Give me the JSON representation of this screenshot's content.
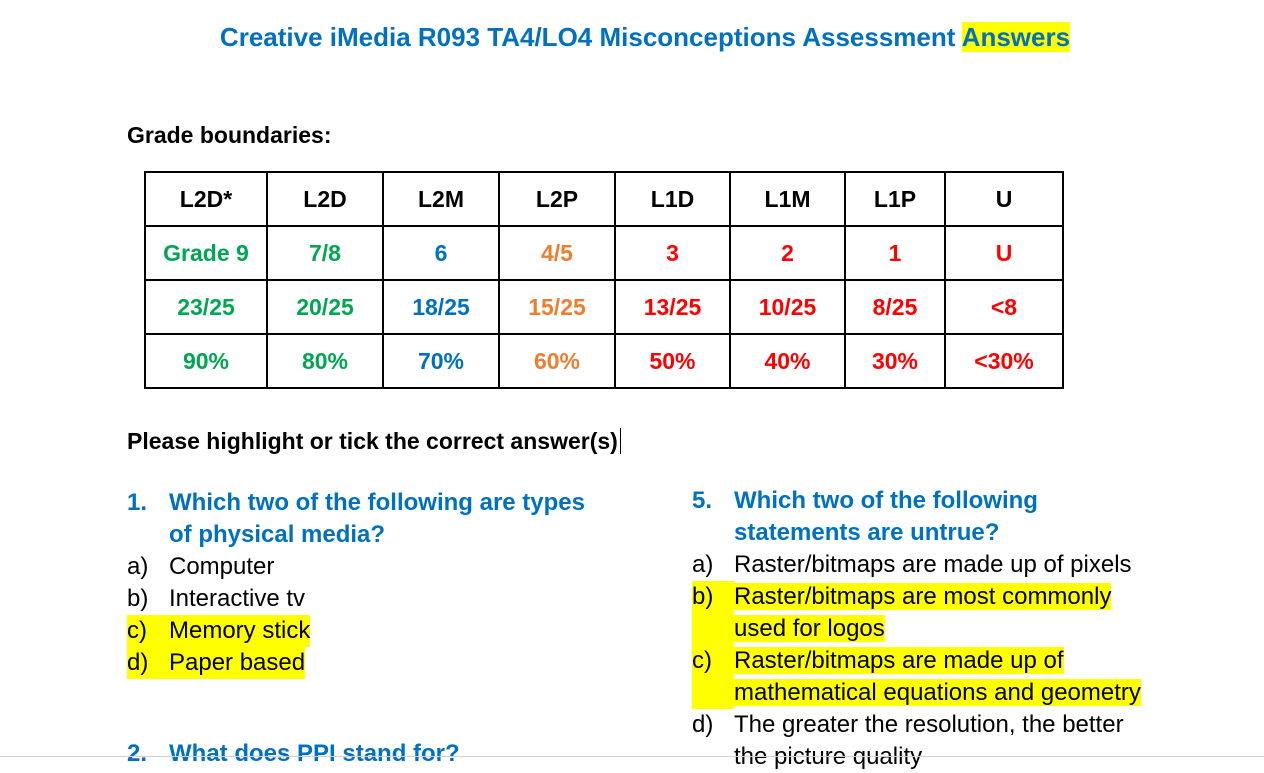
{
  "title": {
    "main": "Creative iMedia R093 TA4/LO4 Misconceptions Assessment ",
    "highlight": "Answers"
  },
  "grade_boundaries_label": "Grade boundaries:",
  "grade_table": {
    "headers": [
      "L2D*",
      "L2D",
      "L2M",
      "L2P",
      "L1D",
      "L1M",
      "L1P",
      "U"
    ],
    "grades": [
      "Grade 9",
      "7/8",
      "6",
      "4/5",
      "3",
      "2",
      "1",
      "U"
    ],
    "marks": [
      "23/25",
      "20/25",
      "18/25",
      "15/25",
      "13/25",
      "10/25",
      "8/25",
      "<8"
    ],
    "percents": [
      "90%",
      "80%",
      "70%",
      "60%",
      "50%",
      "40%",
      "30%",
      "<30%"
    ],
    "colors": {
      "green": "#00a651",
      "blue": "#0070c0",
      "orange": "#ed7d31",
      "red": "#ff0000"
    }
  },
  "instruction": "Please highlight or tick the correct answer(s)",
  "q1": {
    "number": "1.",
    "line1": "Which two of the following are types",
    "line2": "of physical media?",
    "options": [
      {
        "letter": "a)",
        "text": "Computer",
        "correct": false
      },
      {
        "letter": "b)",
        "text": "Interactive tv",
        "correct": false
      },
      {
        "letter": "c)",
        "text": "Memory stick",
        "correct": true
      },
      {
        "letter": "d)",
        "text": "Paper based",
        "correct": true
      }
    ]
  },
  "q5": {
    "number": "5.",
    "line1": "Which two of the following",
    "line2": "statements are untrue?",
    "a": {
      "letter": "a)",
      "text": "Raster/bitmaps are made up of pixels"
    },
    "b": {
      "letter": "b)",
      "line1": "Raster/bitmaps are most commonly",
      "line2": "used for logos"
    },
    "c": {
      "letter": "c)",
      "line1": "Raster/bitmaps are made up of",
      "line2": "mathematical equations and geometry"
    },
    "d": {
      "letter": "d)",
      "line1": "The greater the resolution, the better",
      "line2": "the picture quality"
    }
  },
  "q2_cut": {
    "number": "2.",
    "text": "What does PPI stand for?"
  }
}
